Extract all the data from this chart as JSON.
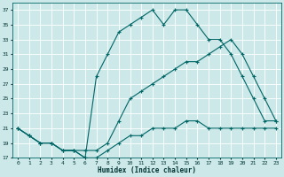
{
  "xlabel": "Humidex (Indice chaleur)",
  "bg_color": "#cce8e8",
  "grid_color": "#ffffff",
  "line_color": "#006666",
  "xlim": [
    -0.5,
    23.5
  ],
  "ylim": [
    17,
    38
  ],
  "yticks": [
    17,
    19,
    21,
    23,
    25,
    27,
    29,
    31,
    33,
    35,
    37
  ],
  "xticks": [
    0,
    1,
    2,
    3,
    4,
    5,
    6,
    7,
    8,
    9,
    10,
    11,
    12,
    13,
    14,
    15,
    16,
    17,
    18,
    19,
    20,
    21,
    22,
    23
  ],
  "series1_x": [
    0,
    1,
    2,
    3,
    4,
    5,
    6,
    7,
    8,
    9,
    10,
    11,
    12,
    13,
    14,
    15,
    16,
    17,
    18,
    19,
    20,
    21,
    22,
    23
  ],
  "series1_y": [
    21,
    20,
    19,
    19,
    18,
    18,
    17,
    17,
    18,
    19,
    20,
    20,
    21,
    21,
    21,
    22,
    22,
    21,
    21,
    21,
    21,
    21,
    21,
    21
  ],
  "series2_x": [
    0,
    1,
    2,
    3,
    4,
    5,
    6,
    7,
    8,
    9,
    10,
    11,
    12,
    13,
    14,
    15,
    16,
    17,
    18,
    19,
    20,
    21,
    22,
    23
  ],
  "series2_y": [
    21,
    20,
    19,
    19,
    18,
    18,
    18,
    18,
    19,
    22,
    25,
    26,
    27,
    28,
    29,
    30,
    30,
    31,
    32,
    33,
    31,
    28,
    25,
    22
  ],
  "series3_x": [
    0,
    1,
    2,
    3,
    4,
    5,
    6,
    7,
    8,
    9,
    10,
    11,
    12,
    13,
    14,
    15,
    16,
    17,
    18,
    19,
    20,
    21,
    22,
    23
  ],
  "series3_y": [
    21,
    20,
    19,
    19,
    18,
    18,
    17,
    28,
    31,
    34,
    35,
    36,
    37,
    35,
    37,
    37,
    35,
    33,
    33,
    31,
    28,
    25,
    22,
    22
  ]
}
